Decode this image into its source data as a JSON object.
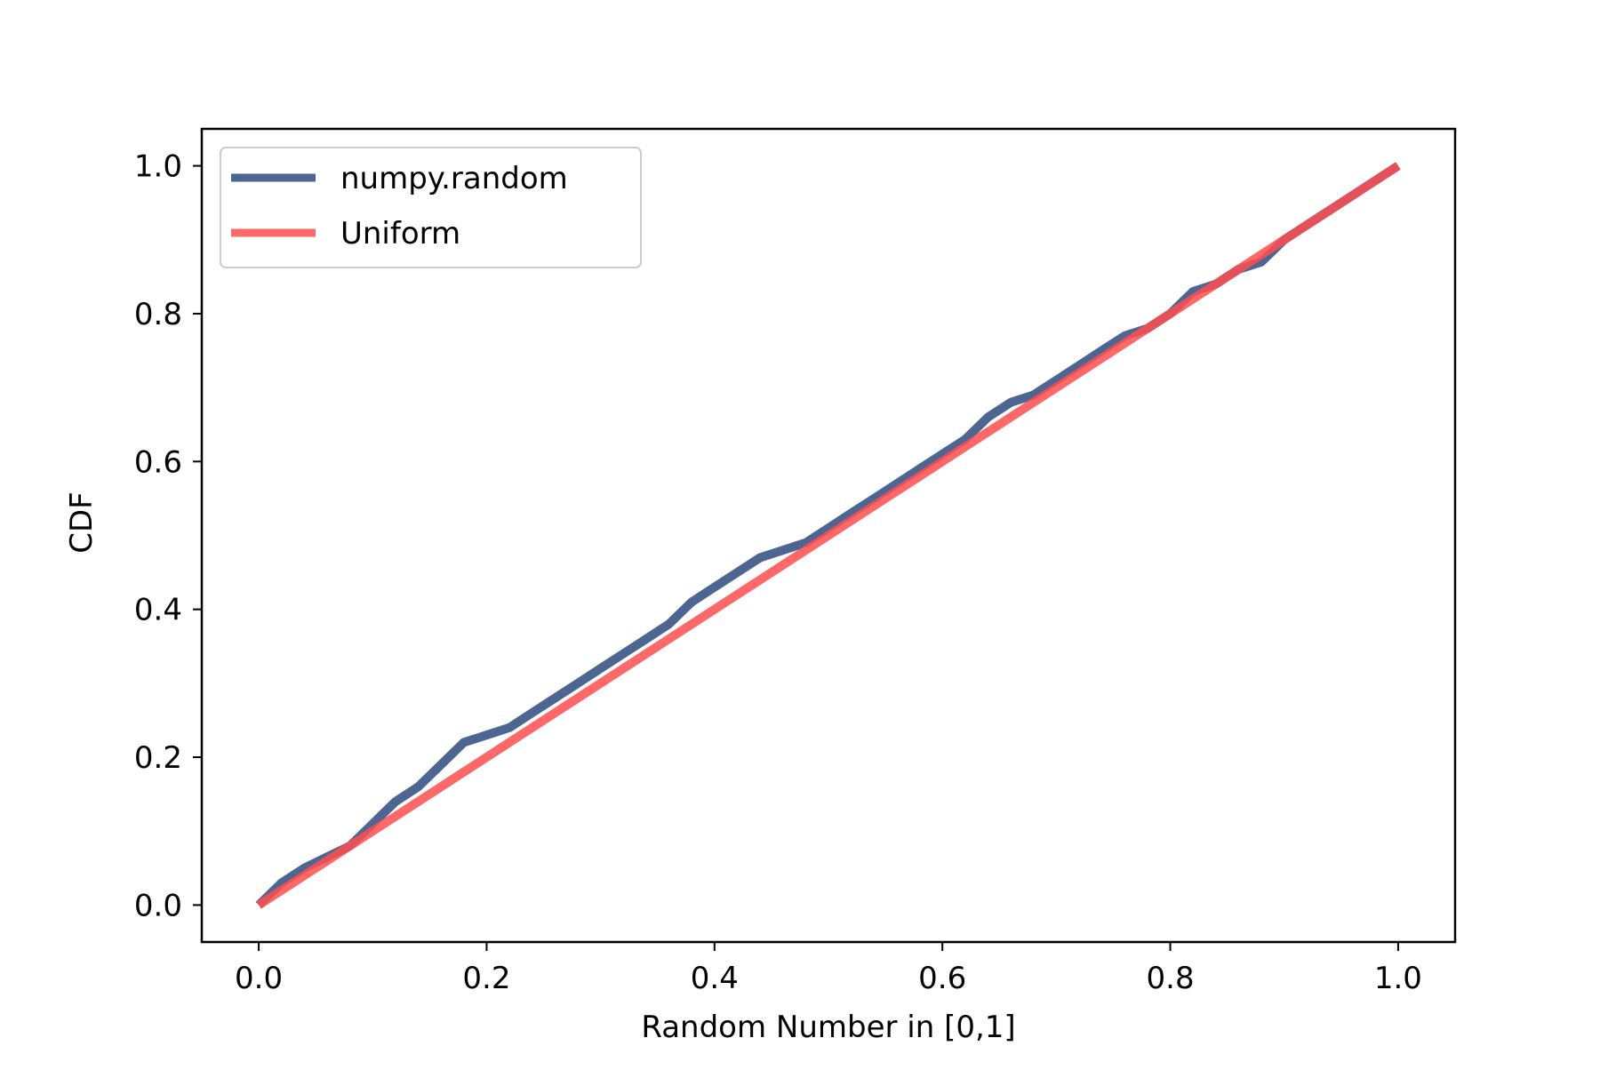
{
  "chart_data": {
    "type": "line",
    "title": "",
    "xlabel": "Random Number in [0,1]",
    "ylabel": "CDF",
    "xlim": [
      -0.05,
      1.05
    ],
    "ylim": [
      -0.05,
      1.05
    ],
    "grid": false,
    "legend_position": "top-left",
    "x_ticks": [
      0.0,
      0.2,
      0.4,
      0.6,
      0.8,
      1.0
    ],
    "x_tick_labels": [
      "0.0",
      "0.2",
      "0.4",
      "0.6",
      "0.8",
      "1.0"
    ],
    "y_ticks": [
      0.0,
      0.2,
      0.4,
      0.6,
      0.8,
      1.0
    ],
    "y_tick_labels": [
      "0.0",
      "0.2",
      "0.4",
      "0.6",
      "0.8",
      "1.0"
    ],
    "series": [
      {
        "name": "numpy.random",
        "color": "#4c6691",
        "x": [
          0.0,
          0.02,
          0.04,
          0.06,
          0.08,
          0.1,
          0.12,
          0.14,
          0.16,
          0.18,
          0.2,
          0.22,
          0.24,
          0.26,
          0.28,
          0.3,
          0.32,
          0.34,
          0.36,
          0.38,
          0.4,
          0.42,
          0.44,
          0.46,
          0.48,
          0.5,
          0.52,
          0.54,
          0.56,
          0.58,
          0.6,
          0.62,
          0.64,
          0.66,
          0.68,
          0.7,
          0.72,
          0.74,
          0.76,
          0.78,
          0.8,
          0.82,
          0.84,
          0.86,
          0.88,
          0.9,
          0.92,
          0.94,
          0.96,
          0.98,
          1.0
        ],
        "values": [
          0.0,
          0.03,
          0.05,
          0.065,
          0.08,
          0.11,
          0.14,
          0.16,
          0.19,
          0.22,
          0.23,
          0.24,
          0.26,
          0.28,
          0.3,
          0.32,
          0.34,
          0.36,
          0.38,
          0.41,
          0.43,
          0.45,
          0.47,
          0.48,
          0.49,
          0.51,
          0.53,
          0.55,
          0.57,
          0.59,
          0.61,
          0.63,
          0.66,
          0.68,
          0.69,
          0.71,
          0.73,
          0.75,
          0.77,
          0.78,
          0.8,
          0.83,
          0.84,
          0.86,
          0.87,
          0.9,
          0.92,
          0.94,
          0.96,
          0.98,
          1.0
        ]
      },
      {
        "name": "Uniform",
        "color": "#ff4d4d",
        "x": [
          0.0,
          1.0
        ],
        "values": [
          0.0,
          1.0
        ]
      }
    ]
  }
}
